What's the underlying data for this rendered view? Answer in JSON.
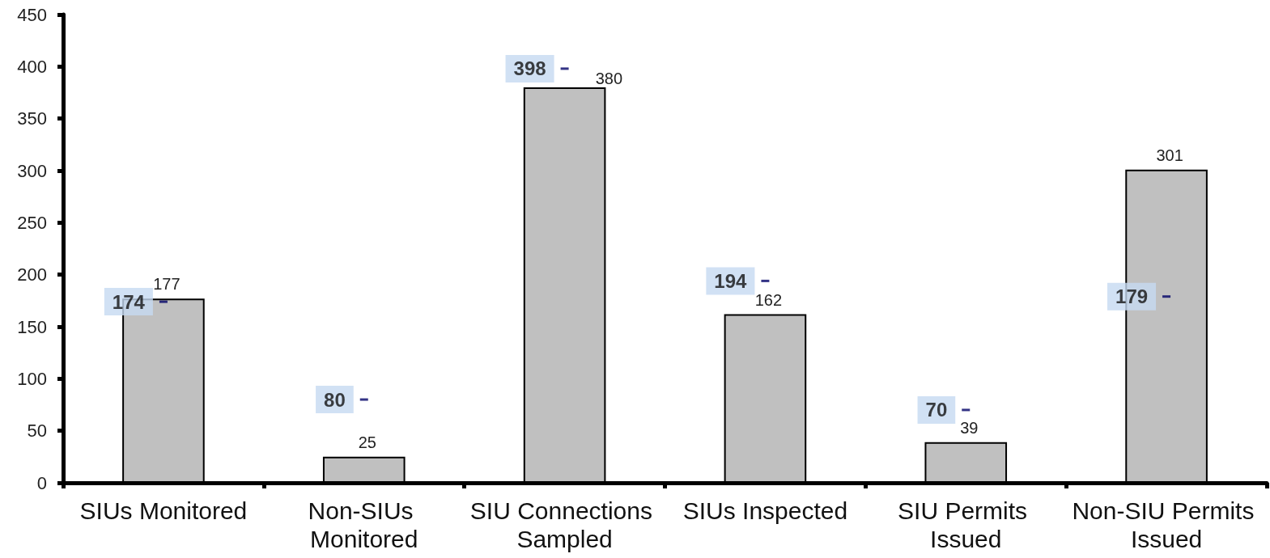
{
  "chart_data": {
    "type": "bar",
    "categories": [
      "SIUs Monitored",
      "Non-SIUs Monitored",
      "SIU Connections Sampled",
      "SIUs Inspected",
      "SIU Permits Issued",
      "Non-SIU Permits Issued"
    ],
    "series": [
      {
        "color": "#c0c0c0",
        "values": [
          177,
          25,
          380,
          162,
          39,
          301
        ]
      },
      {
        "type": "scatter",
        "color": "#000066",
        "x": [
          "SIUs Monitored",
          "Non-SIUs Monitored",
          "SIU Connections Sampled",
          "SIUs Inspected",
          "SIU Permits Issued",
          "Non-SIU Permits Issued"
        ],
        "values": [
          174,
          80,
          398,
          194,
          70,
          179
        ]
      }
    ],
    "ylim": [
      0,
      450
    ],
    "yticks": [
      0,
      50,
      100,
      150,
      200,
      250,
      300,
      350,
      400,
      450
    ],
    "data_labels": true
  }
}
